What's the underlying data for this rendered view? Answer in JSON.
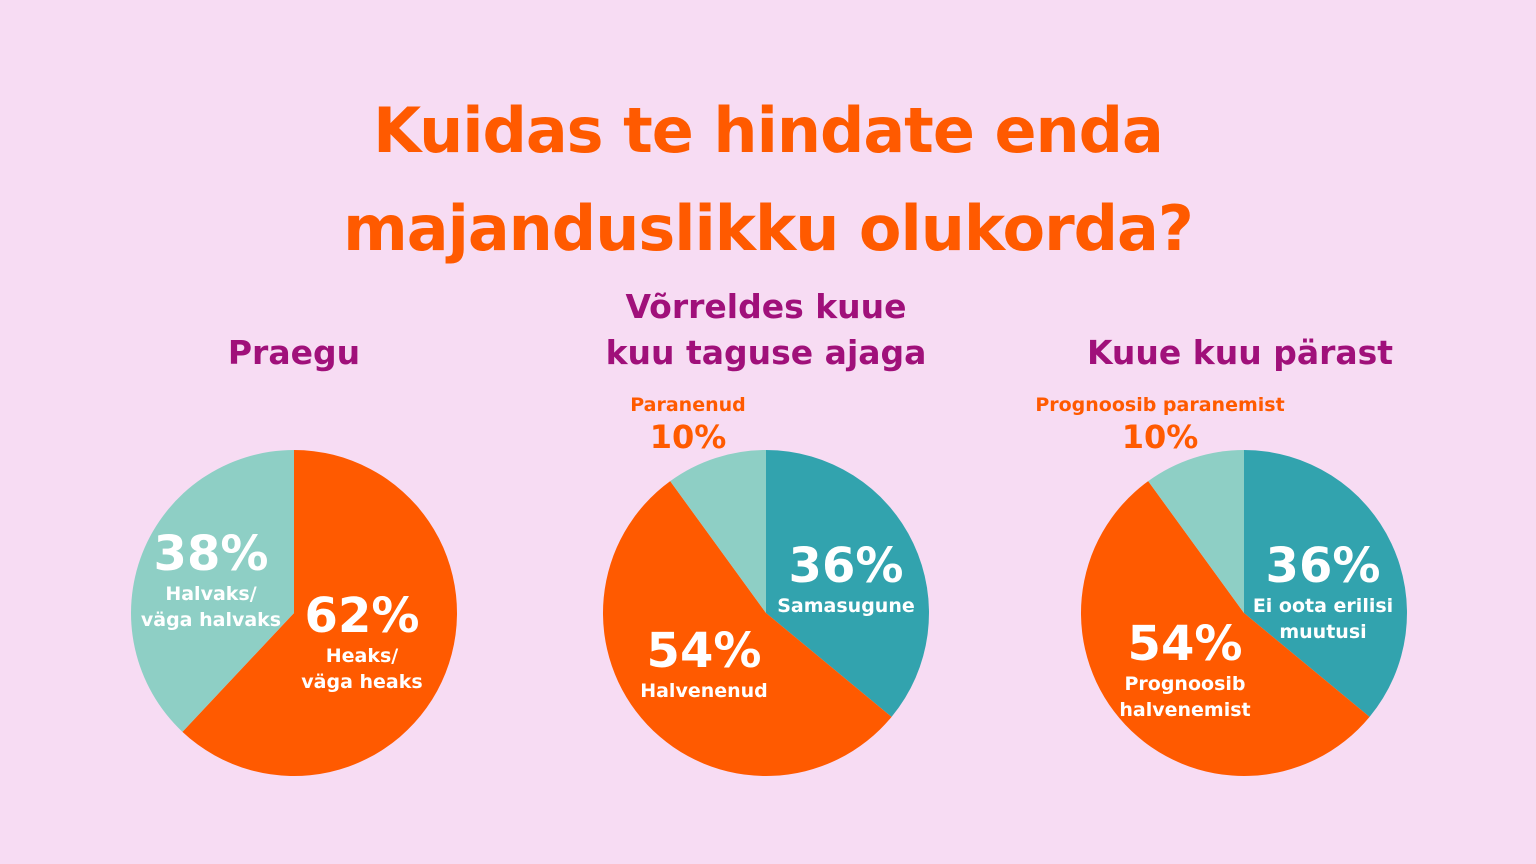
{
  "title": {
    "line1": "Kuidas te hindate enda",
    "line2": "majanduslikku olukorda?"
  },
  "colors": {
    "background": "#f7dcf3",
    "orange": "#ff5a00",
    "light_teal": "#8ecfc5",
    "teal": "#32a3ae",
    "magenta": "#a0107a"
  },
  "chart_data": [
    {
      "type": "pie",
      "title": "Praegu",
      "slices": [
        {
          "label": "Heaks/ väga heaks",
          "label_lines": [
            "Heaks/",
            "väga heaks"
          ],
          "value": 62,
          "display": "62%",
          "color": "#ff5a00"
        },
        {
          "label": "Halvaks/ väga halvaks",
          "label_lines": [
            "Halvaks/",
            "väga halvaks"
          ],
          "value": 38,
          "display": "38%",
          "color": "#8ecfc5"
        }
      ]
    },
    {
      "type": "pie",
      "title": "Võrreldes kuue kuu taguse ajaga",
      "title_lines": [
        "Võrreldes kuue",
        "kuu taguse ajaga"
      ],
      "slices": [
        {
          "label": "Samasugune",
          "label_lines": [
            "Samasugune"
          ],
          "value": 36,
          "display": "36%",
          "color": "#32a3ae"
        },
        {
          "label": "Halvenenud",
          "label_lines": [
            "Halvenenud"
          ],
          "value": 54,
          "display": "54%",
          "color": "#ff5a00"
        },
        {
          "label": "Paranenud",
          "label_lines": [
            "Paranenud"
          ],
          "value": 10,
          "display": "10%",
          "color": "#8ecfc5",
          "outside": true
        }
      ]
    },
    {
      "type": "pie",
      "title": "Kuue kuu pärast",
      "slices": [
        {
          "label": "Ei oota erilisi muutusi",
          "label_lines": [
            "Ei oota erilisi",
            "muutusi"
          ],
          "value": 36,
          "display": "36%",
          "color": "#32a3ae"
        },
        {
          "label": "Prognoosib halvenemist",
          "label_lines": [
            "Prognoosib",
            "halvenemist"
          ],
          "value": 54,
          "display": "54%",
          "color": "#ff5a00"
        },
        {
          "label": "Prognoosib paranemist",
          "label_lines": [
            "Prognoosib paranemist"
          ],
          "value": 10,
          "display": "10%",
          "color": "#8ecfc5",
          "outside": true
        }
      ]
    }
  ]
}
